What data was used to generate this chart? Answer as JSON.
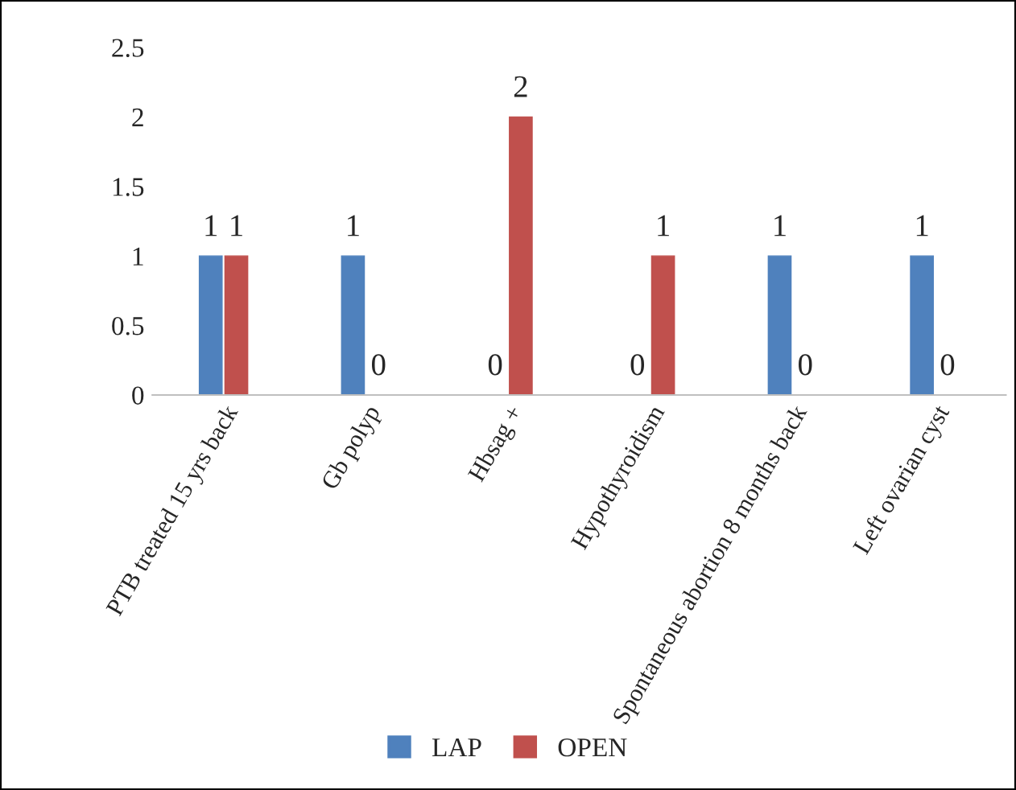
{
  "chart_data": {
    "type": "bar",
    "categories": [
      "PTB treated 15 yrs back",
      "Gb polyp",
      "Hbsag +",
      "Hypothyroidism",
      "Spontaneous abortion 8 months back",
      "Left ovarian cyst"
    ],
    "series": [
      {
        "name": "LAP",
        "color": "#4f81bd",
        "values": [
          1,
          1,
          0,
          0,
          1,
          1
        ]
      },
      {
        "name": "OPEN",
        "color": "#c0504d",
        "values": [
          1,
          0,
          2,
          1,
          0,
          0
        ]
      }
    ],
    "ylim": [
      0,
      2.5
    ],
    "yticks": [
      0,
      0.5,
      1,
      1.5,
      2,
      2.5
    ],
    "data_labels": true,
    "grid": false,
    "legend": "bottom"
  }
}
